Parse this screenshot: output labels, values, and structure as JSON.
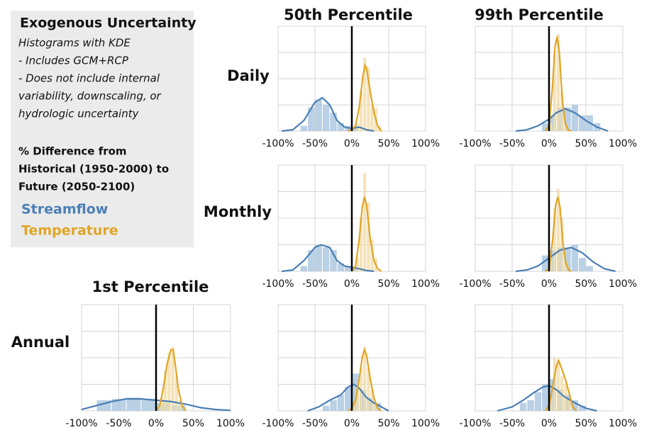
{
  "legend_panel": {
    "title": "Exogenous Uncertainty",
    "notes": [
      "Histograms with KDE",
      "- Includes GCM+RCP",
      "- Does not include internal",
      "variability, downscaling, or",
      "hydrologic uncertainty"
    ],
    "subtitle_lines": [
      "% Difference from",
      "Historical (1950-2000) to",
      "Future (2050-2100)"
    ]
  },
  "column_titles": [
    "50th Percentile",
    "99th Percentile",
    "1st Percentile"
  ],
  "row_titles": [
    "Daily",
    "Monthly",
    "Annual"
  ],
  "chart_data": [
    {
      "type": "histogram",
      "xlim": [
        -100,
        100
      ],
      "xticks": [
        {
          "value": -100,
          "label": "-100%"
        },
        {
          "value": -50,
          "label": "-50%"
        },
        {
          "value": 0,
          "label": "0%"
        },
        {
          "value": 50,
          "label": "50%"
        },
        {
          "value": 100,
          "label": "100%"
        }
      ],
      "ylim": [
        0,
        4
      ],
      "yticks": [
        0,
        1,
        2,
        3,
        4
      ],
      "grid": true,
      "ref_line": 0,
      "series": [
        {
          "name": "Streamflow",
          "color": "#4a7fb5",
          "bins": [
            -70,
            -60,
            -50,
            -40,
            -30,
            -20,
            -10,
            0,
            10
          ],
          "values": [
            0.2,
            0.9,
            1.2,
            1.0,
            0.7,
            0.3,
            0.2,
            0.1
          ],
          "kde": {
            "x": [
              -95,
              -80,
              -65,
              -50,
              -40,
              -30,
              -20,
              -10,
              0,
              10,
              20,
              30
            ],
            "values": [
              0,
              0.05,
              0.4,
              1.1,
              1.27,
              1.0,
              0.4,
              0.15,
              0.1,
              0.15,
              0.05,
              0
            ]
          }
        },
        {
          "name": "Temperature",
          "color": "#e0a526",
          "bins": [
            5,
            10,
            15,
            20,
            25,
            30,
            35,
            40
          ],
          "values": [
            0.3,
            1.5,
            2.8,
            2.4,
            1.0,
            0.9,
            0.2
          ],
          "kde": {
            "x": [
              -5,
              0,
              5,
              10,
              15,
              18,
              20,
              25,
              30,
              35,
              40
            ],
            "values": [
              0,
              0.05,
              0.2,
              0.9,
              2.1,
              2.5,
              2.4,
              1.5,
              0.7,
              0.2,
              0
            ]
          }
        }
      ]
    },
    {
      "type": "histogram",
      "xlim": [
        -100,
        100
      ],
      "xticks": [
        {
          "value": -100,
          "label": "-100%"
        },
        {
          "value": -50,
          "label": "-50%"
        },
        {
          "value": 0,
          "label": "0%"
        },
        {
          "value": 50,
          "label": "50%"
        },
        {
          "value": 100,
          "label": "100%"
        }
      ],
      "ylim": [
        0,
        4
      ],
      "yticks": [
        0,
        1,
        2,
        3,
        4
      ],
      "grid": true,
      "ref_line": 0,
      "series": [
        {
          "name": "Streamflow",
          "color": "#4a7fb5",
          "bins": [
            -10,
            0,
            10,
            20,
            30,
            40,
            50,
            60,
            70
          ],
          "values": [
            0.3,
            0.6,
            0.9,
            0.9,
            1.0,
            0.6,
            0.6,
            0.3
          ],
          "kde": {
            "x": [
              -45,
              -30,
              -15,
              0,
              10,
              22,
              35,
              50,
              65,
              80
            ],
            "values": [
              0,
              0.05,
              0.2,
              0.45,
              0.7,
              0.85,
              0.7,
              0.4,
              0.15,
              0
            ]
          }
        },
        {
          "name": "Temperature",
          "color": "#e0a526",
          "bins": [
            0,
            5,
            10,
            15,
            20,
            25
          ],
          "values": [
            0.3,
            2.9,
            3.7,
            1.5,
            0.3
          ],
          "kde": {
            "x": [
              -5,
              0,
              5,
              8,
              11,
              14,
              18,
              22,
              26,
              30
            ],
            "values": [
              0,
              0.2,
              1.8,
              3.2,
              3.6,
              3.0,
              1.2,
              0.3,
              0.05,
              0
            ]
          }
        }
      ]
    },
    {
      "type": "histogram",
      "xlim": [
        -100,
        100
      ],
      "xticks": [
        {
          "value": -100,
          "label": "-100%"
        },
        {
          "value": -50,
          "label": "-50%"
        },
        {
          "value": 0,
          "label": "0%"
        },
        {
          "value": 50,
          "label": "50%"
        },
        {
          "value": 100,
          "label": "100%"
        }
      ],
      "ylim": [
        0,
        4
      ],
      "yticks": [
        0,
        1,
        2,
        3,
        4
      ],
      "grid": true,
      "ref_line": 0,
      "series": [
        {
          "name": "Streamflow",
          "color": "#4a7fb5",
          "bins": [
            -70,
            -60,
            -50,
            -40,
            -30,
            -20,
            -10,
            0,
            10
          ],
          "values": [
            0.2,
            0.8,
            1.0,
            0.9,
            0.8,
            0.3,
            0.2,
            0.1
          ],
          "kde": {
            "x": [
              -95,
              -80,
              -65,
              -50,
              -42,
              -30,
              -20,
              -10,
              0,
              10,
              20,
              30
            ],
            "values": [
              0,
              0.05,
              0.4,
              0.9,
              1.0,
              0.9,
              0.4,
              0.2,
              0.15,
              0.1,
              0.03,
              0
            ]
          }
        },
        {
          "name": "Temperature",
          "color": "#e0a526",
          "bins": [
            5,
            10,
            15,
            20,
            25,
            30,
            35
          ],
          "values": [
            0.5,
            2.0,
            3.7,
            2.6,
            1.2,
            0.5
          ],
          "kde": {
            "x": [
              0,
              5,
              10,
              14,
              17,
              20,
              25,
              30,
              35,
              40
            ],
            "values": [
              0,
              0.2,
              1.2,
              2.4,
              2.8,
              2.5,
              1.2,
              0.4,
              0.1,
              0
            ]
          }
        }
      ]
    },
    {
      "type": "histogram",
      "xlim": [
        -100,
        100
      ],
      "xticks": [
        {
          "value": -100,
          "label": "-100%"
        },
        {
          "value": -50,
          "label": "-50%"
        },
        {
          "value": 0,
          "label": "0%"
        },
        {
          "value": 50,
          "label": "50%"
        },
        {
          "value": 100,
          "label": "100%"
        }
      ],
      "ylim": [
        0,
        4
      ],
      "yticks": [
        0,
        1,
        2,
        3,
        4
      ],
      "grid": true,
      "ref_line": 0,
      "series": [
        {
          "name": "Streamflow",
          "color": "#4a7fb5",
          "bins": [
            -10,
            0,
            10,
            20,
            30,
            40,
            50,
            60
          ],
          "values": [
            0.6,
            0.8,
            0.9,
            0.9,
            1.0,
            0.5,
            0.2
          ],
          "kde": {
            "x": [
              -45,
              -30,
              -15,
              0,
              15,
              30,
              45,
              60,
              75,
              90
            ],
            "values": [
              0,
              0.05,
              0.2,
              0.5,
              0.8,
              0.9,
              0.7,
              0.35,
              0.1,
              0
            ]
          }
        },
        {
          "name": "Temperature",
          "color": "#e0a526",
          "bins": [
            0,
            5,
            10,
            15,
            20,
            25
          ],
          "values": [
            0.4,
            2.4,
            3.1,
            2.0,
            0.4
          ],
          "kde": {
            "x": [
              -5,
              0,
              5,
              9,
              12,
              15,
              19,
              23,
              27,
              30
            ],
            "values": [
              0,
              0.1,
              1.2,
              2.5,
              2.8,
              2.4,
              1.0,
              0.3,
              0.05,
              0
            ]
          }
        }
      ]
    },
    {
      "type": "histogram",
      "xlim": [
        -100,
        100
      ],
      "xticks": [
        {
          "value": -100,
          "label": "-100%"
        },
        {
          "value": -50,
          "label": "-50%"
        },
        {
          "value": 0,
          "label": "0%"
        },
        {
          "value": 50,
          "label": "50%"
        },
        {
          "value": 100,
          "label": "100%"
        }
      ],
      "ylim": [
        0,
        4
      ],
      "yticks": [
        0,
        1,
        2,
        3,
        4
      ],
      "grid": true,
      "ref_line": 0,
      "series": [
        {
          "name": "Streamflow",
          "color": "#4a7fb5",
          "bins": [
            -80,
            -60,
            -40,
            -20,
            0,
            20,
            40
          ],
          "values": [
            0.4,
            0.45,
            0.5,
            0.45,
            0.3,
            0.2
          ],
          "kde": {
            "x": [
              -100,
              -80,
              -60,
              -40,
              -20,
              0,
              20,
              40,
              60,
              80,
              100
            ],
            "values": [
              0.05,
              0.2,
              0.35,
              0.45,
              0.45,
              0.4,
              0.35,
              0.25,
              0.12,
              0.05,
              0.02
            ]
          }
        },
        {
          "name": "Temperature",
          "color": "#e0a526",
          "bins": [
            5,
            10,
            15,
            20,
            25,
            30,
            35
          ],
          "values": [
            0.5,
            1.5,
            2.2,
            2.4,
            1.3,
            0.4
          ],
          "kde": {
            "x": [
              0,
              5,
              10,
              15,
              20,
              23,
              26,
              30,
              35,
              40
            ],
            "values": [
              0,
              0.2,
              0.9,
              1.8,
              2.3,
              2.3,
              1.7,
              0.8,
              0.2,
              0
            ]
          }
        }
      ]
    },
    {
      "type": "histogram",
      "xlim": [
        -100,
        100
      ],
      "xticks": [
        {
          "value": -100,
          "label": "-100%"
        },
        {
          "value": -50,
          "label": "-50%"
        },
        {
          "value": 0,
          "label": "0%"
        },
        {
          "value": 50,
          "label": "50%"
        },
        {
          "value": 100,
          "label": "100%"
        }
      ],
      "ylim": [
        0,
        4
      ],
      "yticks": [
        0,
        1,
        2,
        3,
        4
      ],
      "grid": true,
      "ref_line": 0,
      "series": [
        {
          "name": "Streamflow",
          "color": "#4a7fb5",
          "bins": [
            -40,
            -30,
            -20,
            -10,
            0,
            10,
            20,
            30,
            40
          ],
          "values": [
            0.2,
            0.4,
            0.6,
            0.9,
            1.4,
            0.8,
            0.5,
            0.3
          ],
          "kde": {
            "x": [
              -60,
              -45,
              -30,
              -15,
              -5,
              3,
              10,
              20,
              30,
              40,
              50
            ],
            "values": [
              0,
              0.15,
              0.4,
              0.6,
              0.9,
              1.0,
              0.85,
              0.5,
              0.3,
              0.15,
              0
            ]
          }
        },
        {
          "name": "Temperature",
          "color": "#e0a526",
          "bins": [
            0,
            5,
            10,
            15,
            20,
            25,
            30,
            35
          ],
          "values": [
            0.3,
            0.9,
            1.6,
            2.4,
            1.6,
            0.8,
            0.3
          ],
          "kde": {
            "x": [
              -5,
              0,
              5,
              10,
              14,
              17,
              20,
              25,
              30,
              35,
              40
            ],
            "values": [
              0,
              0.1,
              0.4,
              1.2,
              2.0,
              2.3,
              2.1,
              1.2,
              0.5,
              0.1,
              0
            ]
          }
        }
      ]
    },
    {
      "type": "histogram",
      "xlim": [
        -100,
        100
      ],
      "xticks": [
        {
          "value": -100,
          "label": "-100%"
        },
        {
          "value": -50,
          "label": "-50%"
        },
        {
          "value": 0,
          "label": "0%"
        },
        {
          "value": 50,
          "label": "50%"
        },
        {
          "value": 100,
          "label": "100%"
        }
      ],
      "ylim": [
        0,
        4
      ],
      "yticks": [
        0,
        1,
        2,
        3,
        4
      ],
      "grid": true,
      "ref_line": 0,
      "series": [
        {
          "name": "Streamflow",
          "color": "#4a7fb5",
          "bins": [
            -40,
            -30,
            -20,
            -10,
            0,
            10,
            20,
            30,
            40,
            50
          ],
          "values": [
            0.3,
            0.4,
            0.7,
            1.0,
            1.2,
            0.8,
            0.6,
            0.4,
            0.2
          ],
          "kde": {
            "x": [
              -70,
              -50,
              -35,
              -20,
              -8,
              0,
              10,
              20,
              35,
              50,
              65
            ],
            "values": [
              0,
              0.15,
              0.4,
              0.7,
              0.9,
              0.95,
              0.8,
              0.55,
              0.3,
              0.1,
              0
            ]
          }
        },
        {
          "name": "Temperature",
          "color": "#e0a526",
          "bins": [
            0,
            5,
            10,
            15,
            20,
            25,
            30
          ],
          "values": [
            0.5,
            2.0,
            1.9,
            1.3,
            1.0,
            0.4
          ],
          "kde": {
            "x": [
              -5,
              0,
              5,
              10,
              13,
              17,
              22,
              27,
              32,
              37
            ],
            "values": [
              0,
              0.2,
              0.9,
              1.7,
              1.9,
              1.6,
              1.2,
              0.7,
              0.15,
              0
            ]
          }
        }
      ]
    }
  ]
}
